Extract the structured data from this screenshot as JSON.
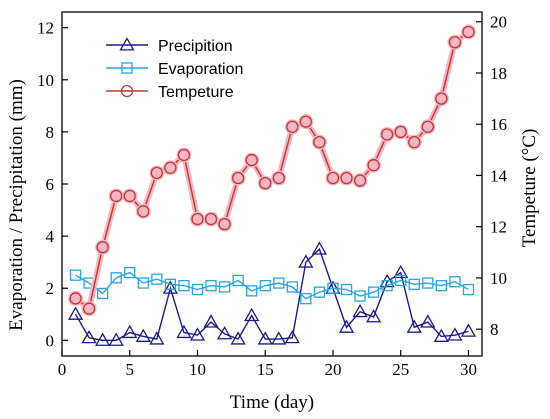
{
  "chart_data": {
    "type": "line",
    "xlabel": "Time (day)",
    "ylabel_left": "Evaporation / Precipitation (mm)",
    "ylabel_right": "Tempeture (°C)",
    "xlim": [
      0,
      31
    ],
    "ylim_left": [
      -0.6,
      12.6
    ],
    "ylim_right": [
      6.953,
      20.38
    ],
    "xticks": [
      0,
      5,
      10,
      15,
      20,
      25,
      30
    ],
    "yticks_left": [
      0,
      2,
      4,
      6,
      8,
      10,
      12
    ],
    "yticks_right": [
      8,
      10,
      12,
      14,
      16,
      18,
      20
    ],
    "grid": false,
    "legend_position": "top-left",
    "x": [
      1,
      2,
      3,
      4,
      5,
      6,
      7,
      8,
      9,
      10,
      11,
      12,
      13,
      14,
      15,
      16,
      17,
      18,
      19,
      20,
      21,
      22,
      23,
      24,
      25,
      26,
      27,
      28,
      29,
      30
    ],
    "series": [
      {
        "name": "Precipition",
        "axis": "left",
        "marker": "triangle",
        "color": "#1a1a8c",
        "values": [
          1.0,
          0.1,
          0.0,
          0.0,
          0.3,
          0.15,
          0.05,
          2.0,
          0.3,
          0.2,
          0.7,
          0.25,
          0.05,
          0.95,
          0.05,
          0.05,
          0.1,
          3.0,
          3.5,
          2.0,
          0.5,
          1.1,
          0.9,
          2.25,
          2.6,
          0.5,
          0.7,
          0.15,
          0.2,
          0.35
        ]
      },
      {
        "name": "Evaporation",
        "axis": "left",
        "marker": "square",
        "color": "#29a3e6",
        "values": [
          2.5,
          2.2,
          1.8,
          2.4,
          2.6,
          2.2,
          2.35,
          2.15,
          2.1,
          1.95,
          2.1,
          2.05,
          2.3,
          1.9,
          2.1,
          2.2,
          2.05,
          1.6,
          1.85,
          2.0,
          1.95,
          1.7,
          1.85,
          2.1,
          2.3,
          2.15,
          2.2,
          2.1,
          2.25,
          1.95
        ]
      },
      {
        "name": "Tempeture",
        "axis": "right",
        "marker": "circle",
        "color": "#c0392b",
        "halo": "#f4b6c6",
        "values": [
          9.2,
          8.8,
          11.2,
          13.2,
          13.2,
          12.6,
          14.1,
          14.3,
          14.8,
          12.3,
          12.3,
          12.1,
          13.9,
          14.6,
          13.7,
          13.9,
          15.9,
          16.1,
          15.3,
          13.9,
          13.9,
          13.8,
          14.4,
          15.6,
          15.7,
          15.3,
          15.9,
          17.0,
          19.2,
          19.6
        ]
      }
    ]
  }
}
